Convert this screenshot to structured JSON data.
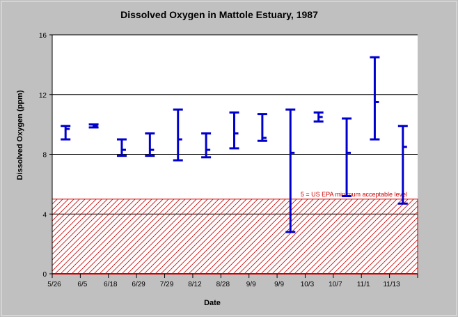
{
  "chart_data": {
    "type": "errorbar",
    "title": "Dissolved Oxygen in Mattole Estuary, 1987",
    "xlabel": "Date",
    "ylabel": "Dissolved Oxygen (ppm)",
    "ylim": [
      0,
      16
    ],
    "yticks": [
      "0",
      "4",
      "8",
      "12",
      "16"
    ],
    "grid": true,
    "categories": [
      "5/26",
      "6/5",
      "6/18",
      "6/29",
      "7/29",
      "8/12",
      "8/28",
      "9/9",
      "9/9",
      "10/3",
      "10/7",
      "11/1",
      "11/13"
    ],
    "series": [
      {
        "color": "#0000cc",
        "points": [
          {
            "min": 9.0,
            "mean": 9.7,
            "max": 9.9
          },
          {
            "min": 9.8,
            "mean": 9.9,
            "max": 10.0
          },
          {
            "min": 7.9,
            "mean": 8.3,
            "max": 9.0
          },
          {
            "min": 7.9,
            "mean": 8.3,
            "max": 9.4
          },
          {
            "min": 7.6,
            "mean": 9.0,
            "max": 11.0
          },
          {
            "min": 7.8,
            "mean": 8.3,
            "max": 9.4
          },
          {
            "min": 8.4,
            "mean": 9.4,
            "max": 10.8
          },
          {
            "min": 8.9,
            "mean": 9.1,
            "max": 10.7
          },
          {
            "min": 2.8,
            "mean": 8.1,
            "max": 11.0
          },
          {
            "min": 10.2,
            "mean": 10.5,
            "max": 10.8
          },
          {
            "min": 5.2,
            "mean": 8.1,
            "max": 10.4
          },
          {
            "min": 9.0,
            "mean": 11.5,
            "max": 14.5
          },
          {
            "min": 4.7,
            "mean": 8.5,
            "max": 9.9
          }
        ]
      }
    ],
    "threshold": {
      "value": 5,
      "label": "5 = US EPA minimum acceptable level",
      "color": "#cc0000",
      "hatched": true
    }
  }
}
